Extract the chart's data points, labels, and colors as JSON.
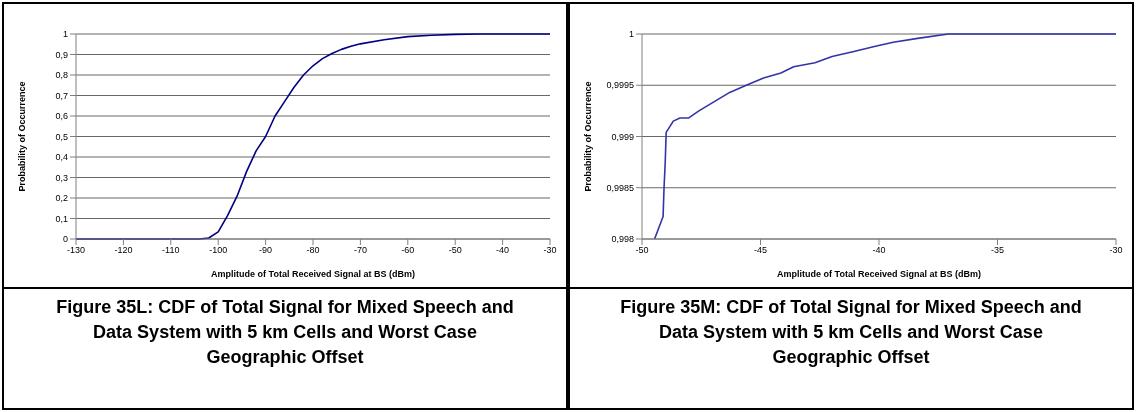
{
  "chart_data": [
    {
      "type": "line",
      "title": "Figure 35L: CDF of Total Signal for Mixed Speech and Data System with 5 km Cells and Worst Case Geographic Offset",
      "xlabel": "Amplitude of Total Received Signal at BS (dBm)",
      "ylabel": "Probability of Occurrence",
      "xlim": [
        -130,
        -30
      ],
      "xticks": [
        -130,
        -120,
        -110,
        -100,
        -90,
        -80,
        -70,
        -60,
        -50,
        -40,
        -30
      ],
      "ylim": [
        0,
        1
      ],
      "yticks": [
        {
          "value": 0,
          "label": "0"
        },
        {
          "value": 0.1,
          "label": "0,1"
        },
        {
          "value": 0.2,
          "label": "0,2"
        },
        {
          "value": 0.3,
          "label": "0,3"
        },
        {
          "value": 0.4,
          "label": "0,4"
        },
        {
          "value": 0.5,
          "label": "0,5"
        },
        {
          "value": 0.6,
          "label": "0,6"
        },
        {
          "value": 0.7,
          "label": "0,7"
        },
        {
          "value": 0.8,
          "label": "0,8"
        },
        {
          "value": 0.9,
          "label": "0,9"
        },
        {
          "value": 1,
          "label": "1"
        }
      ],
      "grid": "y",
      "line_style": "solid",
      "series": [
        {
          "color": "#000080",
          "x": [
            -130,
            -104,
            -102,
            -100,
            -98,
            -96,
            -94,
            -92,
            -90,
            -88,
            -86,
            -84,
            -82,
            -80,
            -78,
            -76,
            -74,
            -72,
            -70,
            -65,
            -60,
            -55,
            -50,
            -45,
            -30
          ],
          "values": [
            0,
            0,
            0.005,
            0.035,
            0.115,
            0.21,
            0.33,
            0.43,
            0.5,
            0.6,
            0.67,
            0.74,
            0.8,
            0.845,
            0.88,
            0.905,
            0.925,
            0.94,
            0.952,
            0.972,
            0.987,
            0.994,
            0.998,
            1,
            1
          ]
        }
      ]
    },
    {
      "type": "line",
      "title": "Figure 35M: CDF of Total Signal for Mixed Speech and Data System with 5 km Cells and Worst Case Geographic Offset",
      "xlabel": "Amplitude of Total Received Signal at BS (dBm)",
      "ylabel": "Probability of Occurrence",
      "xlim": [
        -50,
        -30
      ],
      "xticks": [
        -50,
        -45,
        -40,
        -35,
        -30
      ],
      "ylim": [
        0.998,
        1
      ],
      "yticks": [
        {
          "value": 0.998,
          "label": "0,998"
        },
        {
          "value": 0.9985,
          "label": "0,9985"
        },
        {
          "value": 0.999,
          "label": "0,999"
        },
        {
          "value": 0.9995,
          "label": "0,9995"
        },
        {
          "value": 1,
          "label": "1"
        }
      ],
      "grid": "y",
      "line_style": "solid",
      "series": [
        {
          "color": "#3333aa",
          "x": [
            -49.47,
            -49.11,
            -49.07,
            -49.02,
            -48.98,
            -48.68,
            -48.4,
            -48.04,
            -47.6,
            -46.95,
            -46.3,
            -45.6,
            -44.87,
            -44.14,
            -43.6,
            -42.7,
            -41.98,
            -41.06,
            -40.15,
            -39.4,
            -38.3,
            -37.07,
            -30
          ],
          "values": [
            0.998,
            0.99822,
            0.9985,
            0.99875,
            0.99904,
            0.99915,
            0.99918,
            0.99918,
            0.99925,
            0.99934,
            0.99943,
            0.9995,
            0.99957,
            0.99962,
            0.99968,
            0.99972,
            0.99978,
            0.99983,
            0.99988,
            0.99992,
            0.99996,
            1,
            1
          ]
        }
      ]
    }
  ]
}
